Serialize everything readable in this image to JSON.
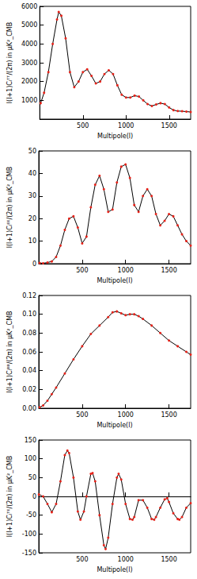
{
  "chart_data": [
    {
      "type": "line",
      "y_label": "l(l+1)Cₗᵀᵀ/(2π) in μK²_CMB",
      "x_label": "Multipole(l)",
      "x": [
        10,
        50,
        100,
        150,
        200,
        220,
        250,
        300,
        350,
        400,
        450,
        500,
        550,
        600,
        650,
        700,
        750,
        800,
        850,
        900,
        950,
        1000,
        1050,
        1100,
        1150,
        1200,
        1250,
        1300,
        1350,
        1400,
        1450,
        1500,
        1550,
        1600,
        1650,
        1700,
        1750
      ],
      "values": [
        850,
        1400,
        2500,
        4000,
        5300,
        5700,
        5500,
        4300,
        2500,
        1700,
        2000,
        2500,
        2650,
        2300,
        1900,
        2000,
        2400,
        2600,
        2400,
        1800,
        1300,
        1150,
        1150,
        1250,
        1200,
        1000,
        800,
        700,
        780,
        850,
        800,
        620,
        480,
        430,
        420,
        400,
        380
      ],
      "xlim": [
        0,
        1750
      ],
      "xticks": [
        500,
        1000,
        1500
      ],
      "ylim": [
        0,
        6000
      ],
      "yticks": [
        1000,
        2000,
        3000,
        4000,
        5000,
        6000
      ],
      "color": "#e8231a",
      "marker": "circle",
      "grid": false
    },
    {
      "type": "line",
      "y_label": "l(l+1)Cₗᴱᴱ/(2π) in μK²_CMB",
      "x_label": "Multipole(l)",
      "x": [
        10,
        50,
        100,
        150,
        200,
        250,
        300,
        350,
        400,
        450,
        500,
        550,
        600,
        650,
        700,
        750,
        800,
        850,
        900,
        950,
        1000,
        1050,
        1100,
        1150,
        1200,
        1250,
        1300,
        1350,
        1400,
        1450,
        1500,
        1550,
        1600,
        1650,
        1700,
        1750
      ],
      "values": [
        0.3,
        0.2,
        0.5,
        1,
        3,
        8,
        15,
        20,
        21,
        16,
        9,
        12,
        25,
        35,
        39,
        33,
        23,
        24,
        36,
        43,
        44,
        38,
        26,
        23,
        30,
        33,
        30,
        22,
        17,
        19,
        22,
        21,
        17,
        13,
        10,
        8
      ],
      "xlim": [
        0,
        1750
      ],
      "xticks": [
        500,
        1000,
        1500
      ],
      "ylim": [
        0,
        50
      ],
      "yticks": [
        0,
        10,
        20,
        30,
        40,
        50
      ],
      "color": "#e8231a",
      "marker": "circle",
      "grid": false
    },
    {
      "type": "line",
      "y_label": "l(l+1)Cₗᴮᴮ/(2π) in μK²_CMB",
      "x_label": "Multipole(l)",
      "x": [
        10,
        50,
        100,
        150,
        200,
        300,
        400,
        500,
        600,
        700,
        800,
        850,
        900,
        950,
        1000,
        1050,
        1100,
        1150,
        1200,
        1300,
        1400,
        1500,
        1600,
        1700,
        1750
      ],
      "values": [
        0.001,
        0.003,
        0.008,
        0.015,
        0.022,
        0.037,
        0.052,
        0.066,
        0.079,
        0.088,
        0.097,
        0.102,
        0.103,
        0.101,
        0.099,
        0.1,
        0.1,
        0.098,
        0.095,
        0.088,
        0.08,
        0.072,
        0.066,
        0.06,
        0.057
      ],
      "xlim": [
        0,
        1750
      ],
      "xticks": [
        500,
        1000,
        1500
      ],
      "ylim": [
        0,
        0.12
      ],
      "yticks": [
        {
          "value": 0,
          "label": "0.00"
        },
        {
          "value": 0.02,
          "label": "0.02"
        },
        {
          "value": 0.04,
          "label": "0.04"
        },
        {
          "value": 0.06,
          "label": "0.06"
        },
        {
          "value": 0.08,
          "label": "0.08"
        },
        {
          "value": 0.1,
          "label": "0.10"
        },
        {
          "value": 0.12,
          "label": "0.12"
        }
      ],
      "color": "#e8231a",
      "marker": "circle",
      "grid": false
    },
    {
      "type": "line",
      "y_label": "l(l+1)Cₗᵀᴱ/(2π) in μK²_CMB",
      "x_label": "Multipole(l)",
      "x": [
        2,
        50,
        100,
        150,
        200,
        250,
        300,
        330,
        350,
        400,
        450,
        480,
        520,
        550,
        600,
        620,
        650,
        700,
        750,
        770,
        800,
        850,
        900,
        920,
        950,
        1000,
        1050,
        1080,
        1100,
        1150,
        1200,
        1250,
        1300,
        1330,
        1350,
        1400,
        1450,
        1480,
        1500,
        1550,
        1600,
        1620,
        1650,
        1700,
        1750
      ],
      "values": [
        5,
        0,
        -20,
        -42,
        -20,
        40,
        110,
        122,
        115,
        50,
        -40,
        -62,
        -40,
        0,
        60,
        62,
        40,
        -50,
        -130,
        -140,
        -110,
        -20,
        50,
        60,
        45,
        -20,
        -60,
        -62,
        -55,
        -10,
        -10,
        -30,
        -60,
        -62,
        -55,
        -30,
        -8,
        -5,
        -15,
        -45,
        -60,
        -62,
        -55,
        -30,
        -18
      ],
      "xlim": [
        0,
        1750
      ],
      "xticks": [
        500,
        1000,
        1500
      ],
      "ylim": [
        -150,
        150
      ],
      "yticks": [
        -150,
        -100,
        -50,
        0,
        50,
        100,
        150
      ],
      "color": "#e8231a",
      "marker": "circle",
      "grid": false
    }
  ]
}
